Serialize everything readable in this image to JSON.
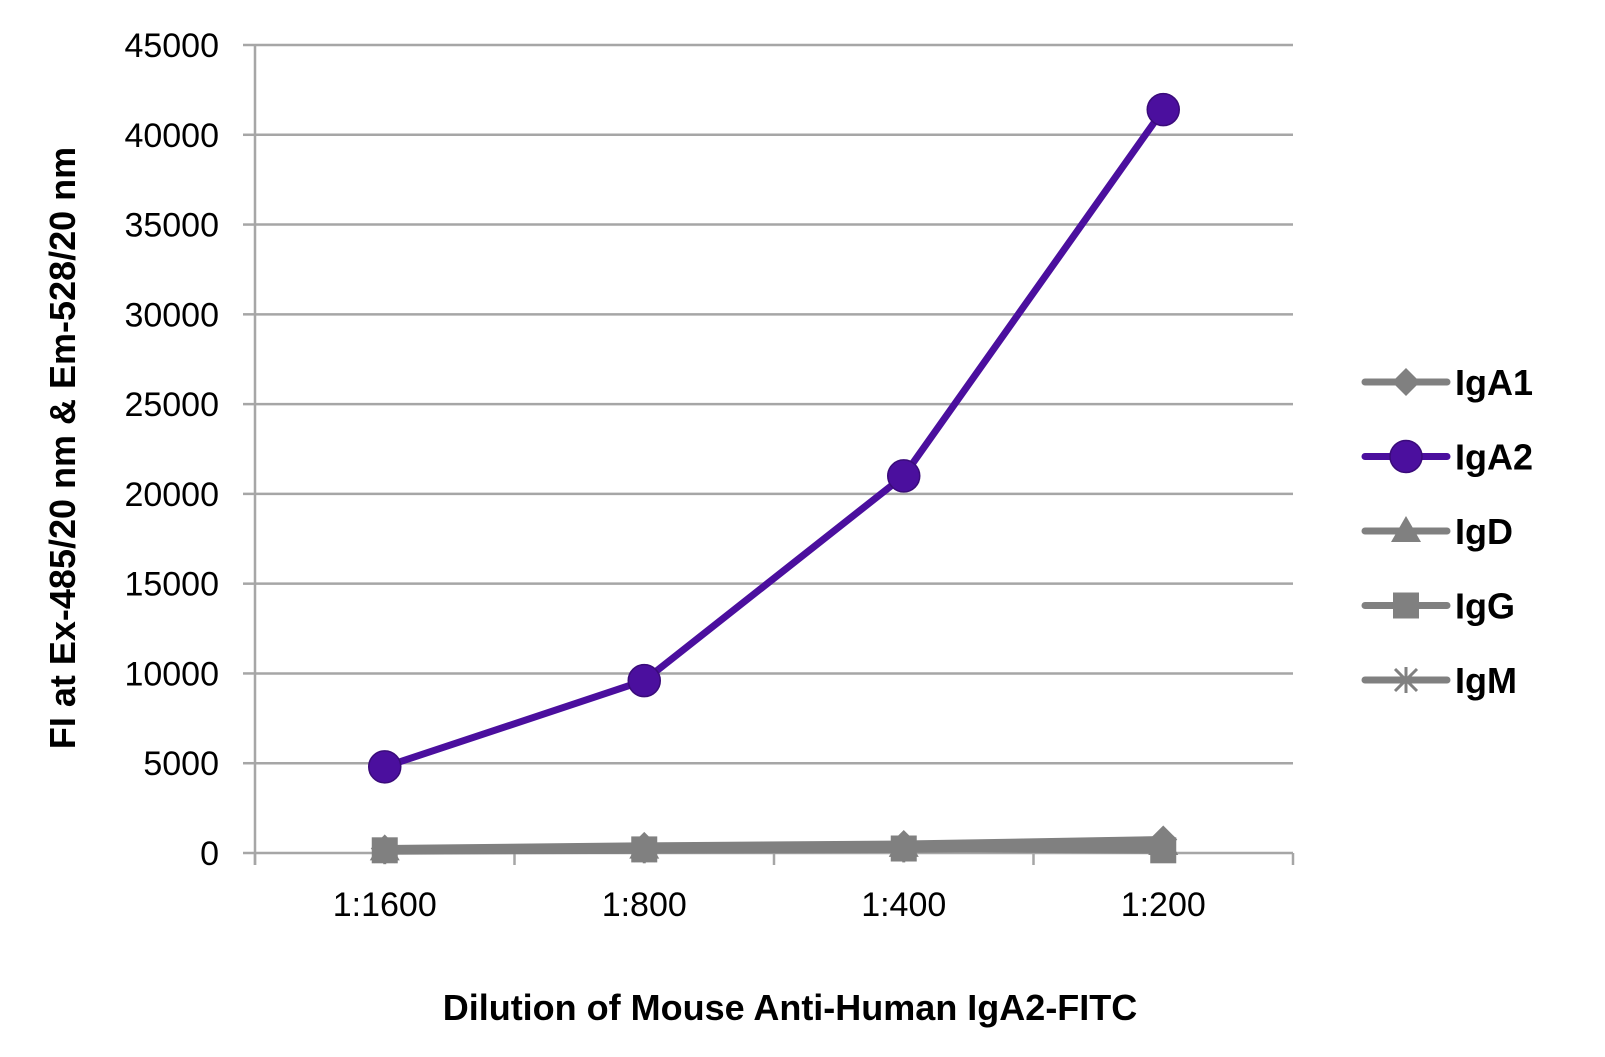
{
  "chart_data": {
    "type": "line",
    "title": "",
    "xlabel": "Dilution of Mouse Anti-Human IgA2-FITC",
    "ylabel": "FI at Ex-485/20 nm & Em-528/20 nm",
    "categories": [
      "1:1600",
      "1:800",
      "1:400",
      "1:200"
    ],
    "ylim": [
      0,
      45000
    ],
    "yticks": [
      0,
      5000,
      10000,
      15000,
      20000,
      25000,
      30000,
      35000,
      40000,
      45000
    ],
    "grid": true,
    "legend_position": "right",
    "series": [
      {
        "name": "IgA1",
        "marker": "diamond",
        "color": "#808080",
        "values": [
          250,
          400,
          500,
          750
        ]
      },
      {
        "name": "IgA2",
        "marker": "circle",
        "color": "#4b0f9e",
        "values": [
          4800,
          9600,
          21000,
          41400
        ]
      },
      {
        "name": "IgD",
        "marker": "triangle",
        "color": "#808080",
        "values": [
          200,
          300,
          400,
          500
        ]
      },
      {
        "name": "IgG",
        "marker": "square",
        "color": "#808080",
        "values": [
          150,
          200,
          250,
          150
        ]
      },
      {
        "name": "IgM",
        "marker": "star",
        "color": "#808080",
        "values": [
          100,
          150,
          200,
          300
        ]
      }
    ]
  }
}
